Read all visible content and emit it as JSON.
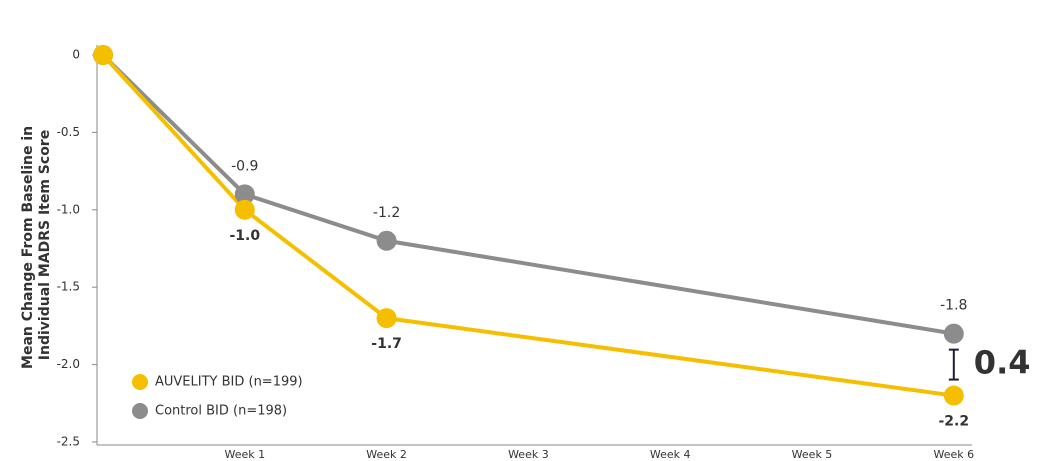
{
  "chart_data": {
    "type": "line",
    "ylabel": [
      "Mean Change From Baseline in",
      "Individual MADRS Item Score"
    ],
    "categories": [
      null,
      "Week 1",
      "Week 2",
      "Week 3",
      "Week 4",
      "Week 5",
      "Week 6"
    ],
    "series": [
      {
        "name": "AUVELITY BID (n=199)",
        "color": "#f5bf00",
        "values": [
          0,
          -1.0,
          -1.7,
          null,
          null,
          null,
          -2.2
        ],
        "value_labels": [
          null,
          "-1.0",
          "-1.7",
          null,
          null,
          null,
          "-2.2"
        ]
      },
      {
        "name": "Control BID (n=198)",
        "color": "#8c8c8c",
        "values": [
          0,
          -0.9,
          -1.2,
          null,
          null,
          null,
          -1.8
        ],
        "value_labels": [
          null,
          "-0.9",
          "-1.2",
          null,
          null,
          null,
          "-1.8"
        ]
      }
    ],
    "ylim": [
      -2.5,
      0
    ],
    "yticks": [
      0,
      -0.5,
      {
        "value": -1.0,
        "label": "-1.0"
      },
      -1.5,
      {
        "value": -2.0,
        "label": "-2.0"
      },
      -2.5
    ],
    "annotation": "0.4",
    "legend": "lower left"
  }
}
